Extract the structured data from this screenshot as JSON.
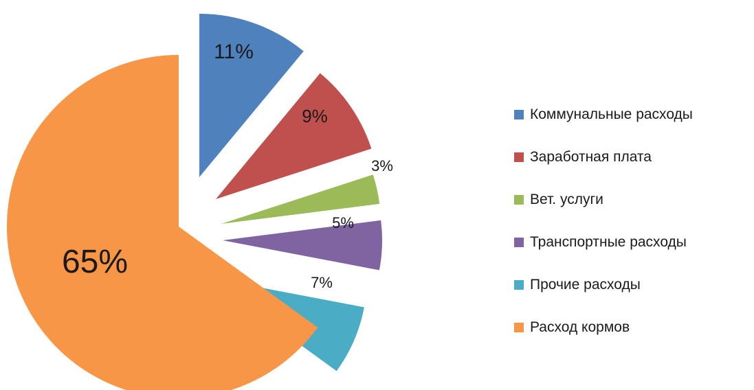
{
  "chart_data": {
    "type": "pie",
    "exploded": true,
    "legend_position": "right",
    "slices": [
      {
        "name": "Коммунальные расходы",
        "value": 11,
        "label": "11%",
        "color": "#4f81bd"
      },
      {
        "name": "Заработная плата",
        "value": 9,
        "label": "9%",
        "color": "#c0504d"
      },
      {
        "name": "Вет. услуги",
        "value": 3,
        "label": "3%",
        "color": "#9bbb59"
      },
      {
        "name": "Транспортные расходы",
        "value": 5,
        "label": "5%",
        "color": "#8064a2"
      },
      {
        "name": "Прочие расходы",
        "value": 7,
        "label": "7%",
        "color": "#4bacc6"
      },
      {
        "name": "Расход кормов",
        "value": 65,
        "label": "65%",
        "color": "#f79646"
      }
    ]
  }
}
